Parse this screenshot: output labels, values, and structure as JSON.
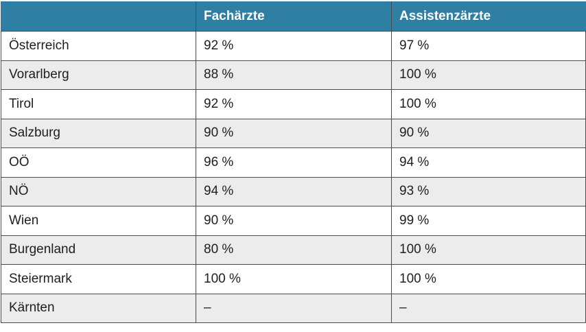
{
  "table": {
    "headers": [
      "",
      "Fachärzte",
      "Assistenzärzte"
    ],
    "rows": [
      {
        "region": "Österreich",
        "fachaerzte": "92 %",
        "assistenzaerzte": "97 %"
      },
      {
        "region": "Vorarlberg",
        "fachaerzte": "88 %",
        "assistenzaerzte": "100 %"
      },
      {
        "region": "Tirol",
        "fachaerzte": "92 %",
        "assistenzaerzte": "100 %"
      },
      {
        "region": "Salzburg",
        "fachaerzte": "90 %",
        "assistenzaerzte": "90 %"
      },
      {
        "region": "OÖ",
        "fachaerzte": "96 %",
        "assistenzaerzte": "94 %"
      },
      {
        "region": "NÖ",
        "fachaerzte": "94 %",
        "assistenzaerzte": "93 %"
      },
      {
        "region": "Wien",
        "fachaerzte": "90 %",
        "assistenzaerzte": "99 %"
      },
      {
        "region": "Burgenland",
        "fachaerzte": "80 %",
        "assistenzaerzte": "100 %"
      },
      {
        "region": "Steiermark",
        "fachaerzte": "100 %",
        "assistenzaerzte": "100 %"
      },
      {
        "region": "Kärnten",
        "fachaerzte": "–",
        "assistenzaerzte": "–"
      }
    ]
  },
  "colors": {
    "header_background": "#2f7fa4",
    "header_text": "#ffffff",
    "row_stripe": "#ececec",
    "border": "#4a4a4a"
  }
}
